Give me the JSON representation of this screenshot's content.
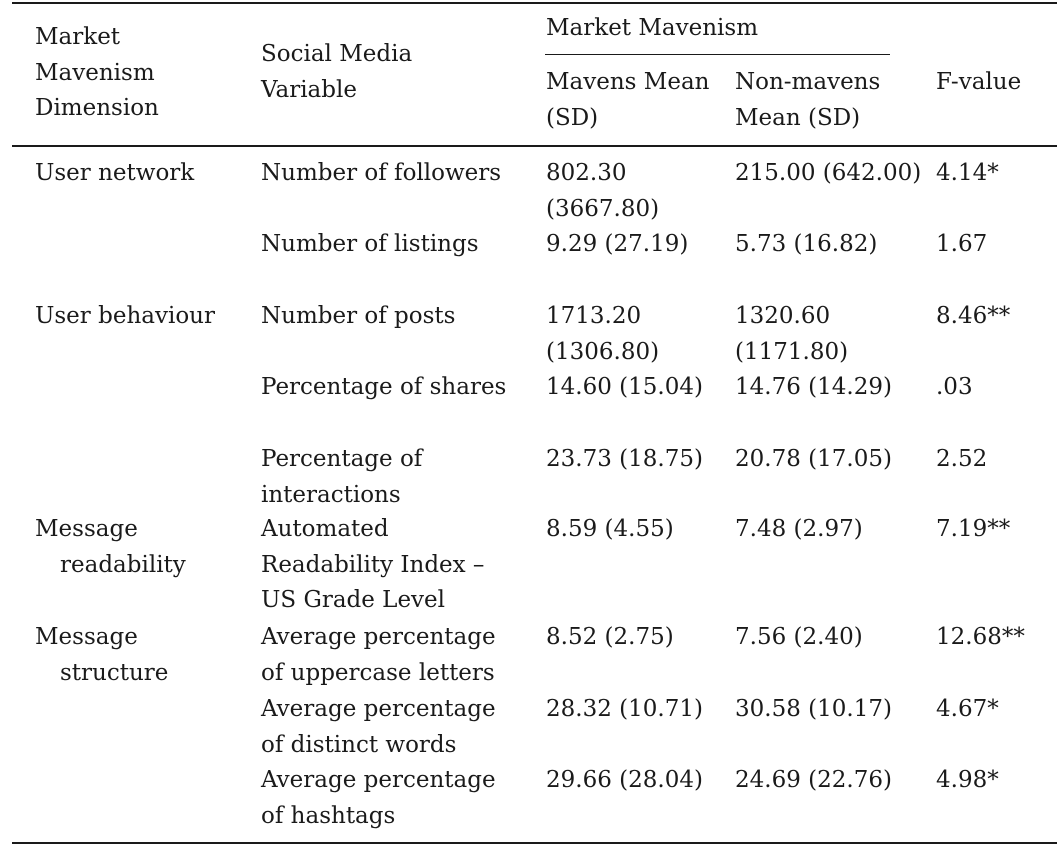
{
  "header": {
    "dimension": "Market Mavenism Dimension",
    "variable": "Social Media Variable",
    "group": "Market Mavenism",
    "mavens": "Mavens Mean (SD)",
    "nonmavens": "Non-mavens Mean (SD)",
    "fvalue": "F-value"
  },
  "rows": [
    {
      "dimension": "User network",
      "variable": "Number of followers",
      "mavens": "802.30 (3667.80)",
      "nonmavens": "215.00 (642.00)",
      "f": "4.14*"
    },
    {
      "dimension": "",
      "variable": "Number of listings",
      "mavens": "9.29 (27.19)",
      "nonmavens": "5.73 (16.82)",
      "f": "1.67"
    },
    {
      "dimension": "User behaviour",
      "variable": "Number of posts",
      "mavens": "1713.20 (1306.80)",
      "nonmavens": "1320.60 (1171.80)",
      "f": "8.46**"
    },
    {
      "dimension": "",
      "variable": "Percentage of shares",
      "mavens": "14.60 (15.04)",
      "nonmavens": "14.76 (14.29)",
      "f": ".03"
    },
    {
      "dimension": "",
      "variable": "Percentage of interactions",
      "mavens": "23.73 (18.75)",
      "nonmavens": "20.78 (17.05)",
      "f": "2.52"
    },
    {
      "dimension_line1": "Message",
      "dimension_line2": "readability",
      "variable": "Automated Readability Index – US Grade Level",
      "mavens": "8.59 (4.55)",
      "nonmavens": "7.48 (2.97)",
      "f": "7.19**"
    },
    {
      "dimension_line1": "Message",
      "dimension_line2": "structure",
      "variable": "Average percentage of uppercase letters",
      "mavens": "8.52 (2.75)",
      "nonmavens": "7.56 (2.40)",
      "f": "12.68**"
    },
    {
      "dimension": "",
      "variable": "Average percentage of distinct words",
      "mavens": "28.32 (10.71)",
      "nonmavens": "30.58 (10.17)",
      "f": "4.67*"
    },
    {
      "dimension": "",
      "variable": "Average percentage of hashtags",
      "mavens": "29.66 (28.04)",
      "nonmavens": "24.69 (22.76)",
      "f": "4.98*"
    }
  ]
}
